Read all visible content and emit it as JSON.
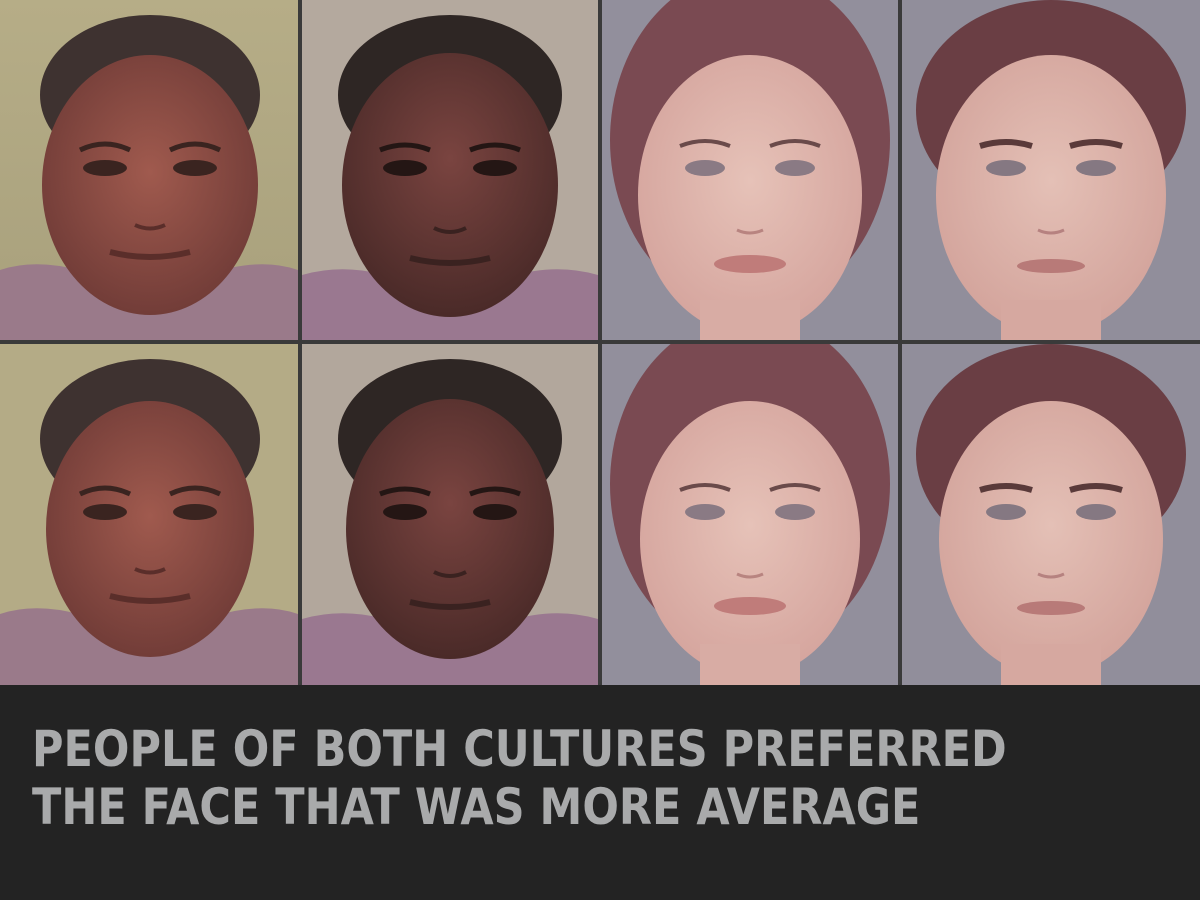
{
  "caption": {
    "line1": "PEOPLE OF BOTH CULTURES PREFERRED",
    "line2": "THE FACE THAT WAS MORE AVERAGE"
  },
  "faces": [
    {
      "description": "african-female-face",
      "row": 1
    },
    {
      "description": "african-male-face",
      "row": 1
    },
    {
      "description": "european-female-face",
      "row": 1
    },
    {
      "description": "european-male-face",
      "row": 1
    },
    {
      "description": "african-female-face",
      "row": 2
    },
    {
      "description": "african-male-face",
      "row": 2
    },
    {
      "description": "european-female-face",
      "row": 2
    },
    {
      "description": "european-male-face",
      "row": 2
    }
  ],
  "colors": {
    "background": "#232323",
    "caption_text": "#a9aaab",
    "african_bg": "#b8ad8a",
    "european_bg": "#8f8e99"
  }
}
